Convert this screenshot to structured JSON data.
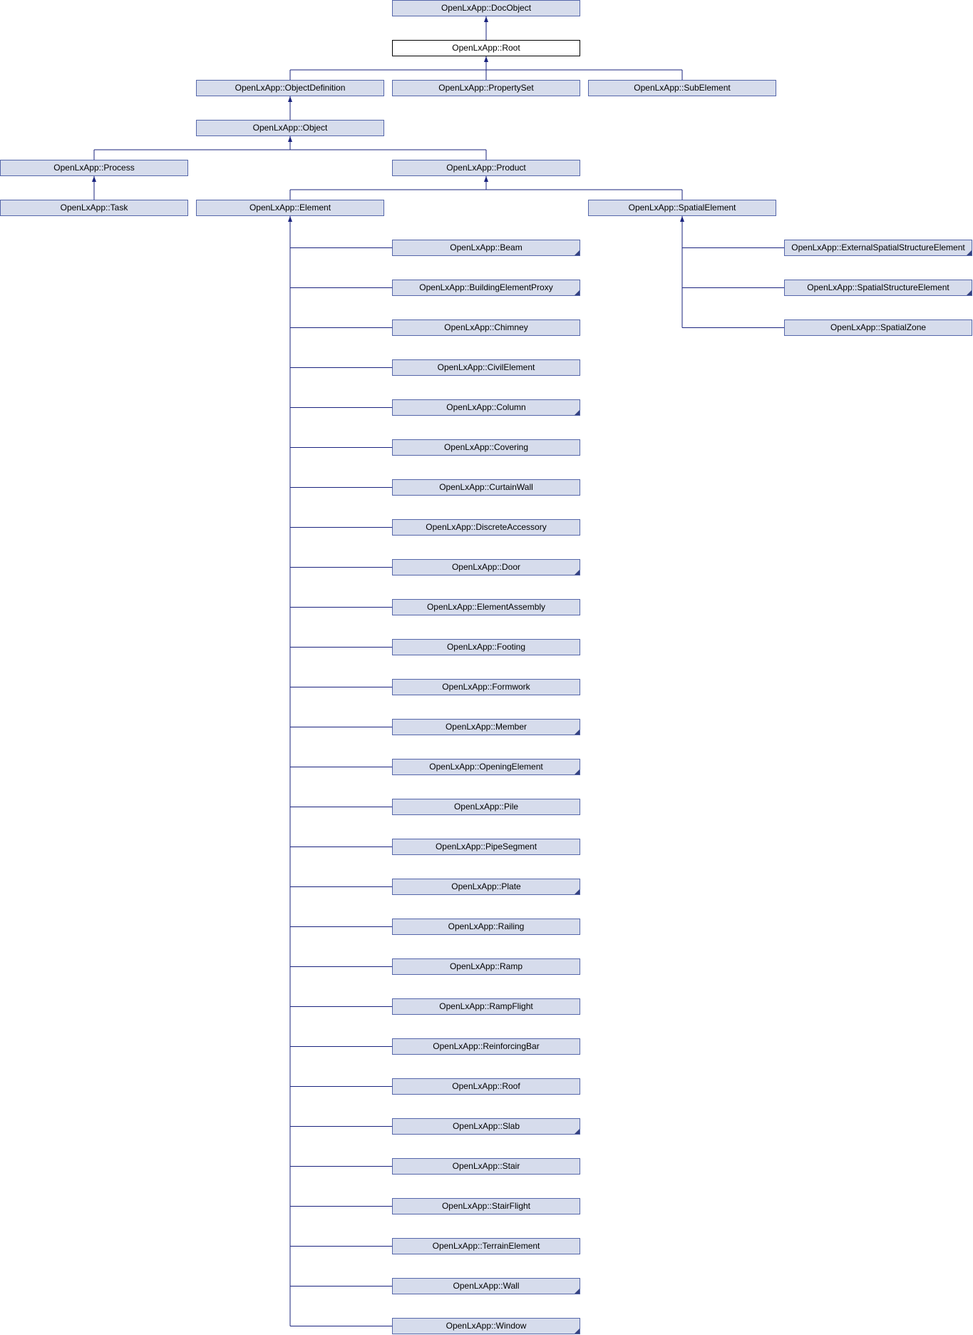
{
  "diagram": {
    "colors": {
      "node_fill": "#d6dcec",
      "node_border": "#5566aa",
      "current_fill": "#ffffff",
      "current_border": "#000000",
      "edge": "#1a237e"
    },
    "current": "root",
    "nodes": {
      "docobject": "OpenLxApp::DocObject",
      "root": "OpenLxApp::Root",
      "objectdefinition": "OpenLxApp::ObjectDefinition",
      "propertyset": "OpenLxApp::PropertySet",
      "subelement": "OpenLxApp::SubElement",
      "object": "OpenLxApp::Object",
      "process": "OpenLxApp::Process",
      "product": "OpenLxApp::Product",
      "task": "OpenLxApp::Task",
      "element": "OpenLxApp::Element",
      "spatialelement": "OpenLxApp::SpatialElement",
      "externalspatialstructureelement": "OpenLxApp::ExternalSpatialStructureElement",
      "spatialstructureelement": "OpenLxApp::SpatialStructureElement",
      "spatialzone": "OpenLxApp::SpatialZone",
      "beam": "OpenLxApp::Beam",
      "buildingelementproxy": "OpenLxApp::BuildingElementProxy",
      "chimney": "OpenLxApp::Chimney",
      "civilelement": "OpenLxApp::CivilElement",
      "column": "OpenLxApp::Column",
      "covering": "OpenLxApp::Covering",
      "curtainwall": "OpenLxApp::CurtainWall",
      "discreteaccessory": "OpenLxApp::DiscreteAccessory",
      "door": "OpenLxApp::Door",
      "elementassembly": "OpenLxApp::ElementAssembly",
      "footing": "OpenLxApp::Footing",
      "formwork": "OpenLxApp::Formwork",
      "member": "OpenLxApp::Member",
      "openingelement": "OpenLxApp::OpeningElement",
      "pile": "OpenLxApp::Pile",
      "pipesegment": "OpenLxApp::PipeSegment",
      "plate": "OpenLxApp::Plate",
      "railing": "OpenLxApp::Railing",
      "ramp": "OpenLxApp::Ramp",
      "rampflight": "OpenLxApp::RampFlight",
      "reinforcingbar": "OpenLxApp::ReinforcingBar",
      "roof": "OpenLxApp::Roof",
      "slab": "OpenLxApp::Slab",
      "stair": "OpenLxApp::Stair",
      "stairflight": "OpenLxApp::StairFlight",
      "terrainelement": "OpenLxApp::TerrainElement",
      "wall": "OpenLxApp::Wall",
      "window": "OpenLxApp::Window"
    },
    "has_more_subclasses": [
      "beam",
      "buildingelementproxy",
      "column",
      "door",
      "member",
      "openingelement",
      "plate",
      "slab",
      "wall",
      "window",
      "externalspatialstructureelement",
      "spatialstructureelement"
    ],
    "edges": [
      [
        "root",
        "docobject"
      ],
      [
        "objectdefinition",
        "root"
      ],
      [
        "propertyset",
        "root"
      ],
      [
        "subelement",
        "root"
      ],
      [
        "object",
        "objectdefinition"
      ],
      [
        "process",
        "object"
      ],
      [
        "product",
        "object"
      ],
      [
        "task",
        "process"
      ],
      [
        "element",
        "product"
      ],
      [
        "spatialelement",
        "product"
      ],
      [
        "beam",
        "element"
      ],
      [
        "buildingelementproxy",
        "element"
      ],
      [
        "chimney",
        "element"
      ],
      [
        "civilelement",
        "element"
      ],
      [
        "column",
        "element"
      ],
      [
        "covering",
        "element"
      ],
      [
        "curtainwall",
        "element"
      ],
      [
        "discreteaccessory",
        "element"
      ],
      [
        "door",
        "element"
      ],
      [
        "elementassembly",
        "element"
      ],
      [
        "footing",
        "element"
      ],
      [
        "formwork",
        "element"
      ],
      [
        "member",
        "element"
      ],
      [
        "openingelement",
        "element"
      ],
      [
        "pile",
        "element"
      ],
      [
        "pipesegment",
        "element"
      ],
      [
        "plate",
        "element"
      ],
      [
        "railing",
        "element"
      ],
      [
        "ramp",
        "element"
      ],
      [
        "rampflight",
        "element"
      ],
      [
        "reinforcingbar",
        "element"
      ],
      [
        "roof",
        "element"
      ],
      [
        "slab",
        "element"
      ],
      [
        "stair",
        "element"
      ],
      [
        "stairflight",
        "element"
      ],
      [
        "terrainelement",
        "element"
      ],
      [
        "wall",
        "element"
      ],
      [
        "window",
        "element"
      ],
      [
        "externalspatialstructureelement",
        "spatialelement"
      ],
      [
        "spatialstructureelement",
        "spatialelement"
      ],
      [
        "spatialzone",
        "spatialelement"
      ]
    ]
  }
}
